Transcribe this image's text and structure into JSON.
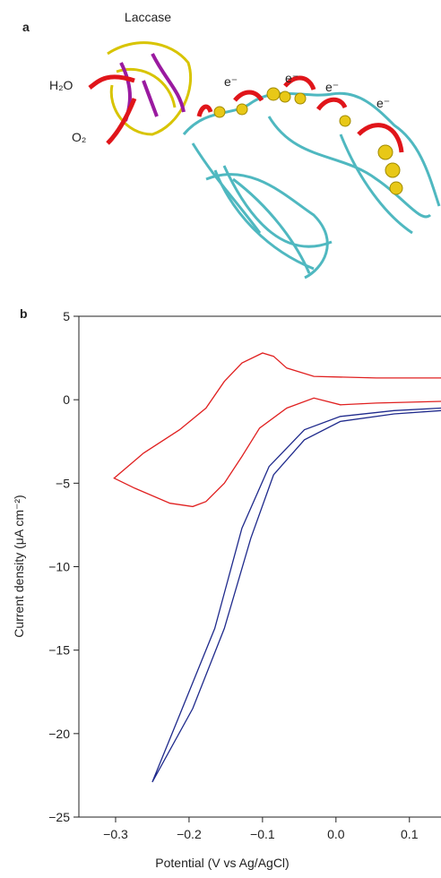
{
  "panel_labels": [
    "a",
    "b"
  ],
  "illustration": {
    "protein": "Laccase",
    "product": "H₂O",
    "reactant": "O₂",
    "electrons": [
      "e⁻",
      "e⁻",
      "e⁻",
      "e⁻"
    ]
  },
  "chart_data": {
    "type": "line",
    "x_label": "Potential (V vs Ag/AgCl)",
    "y_label": "Current density (μA cm⁻²)",
    "xlim": [
      -0.35,
      0.143
    ],
    "ylim": [
      -25,
      5
    ],
    "xticks": [
      {
        "value": -0.3,
        "label": "−0.3"
      },
      {
        "value": -0.2,
        "label": "−0.2"
      },
      {
        "value": -0.1,
        "label": "−0.1"
      },
      {
        "value": 0,
        "label": "0.0"
      },
      {
        "value": 0.1,
        "label": "0.1"
      }
    ],
    "yticks": [
      5,
      0,
      {
        "value": -5,
        "label": "−5"
      },
      {
        "value": -10,
        "label": "−10"
      },
      {
        "value": -15,
        "label": "−15"
      },
      {
        "value": -20,
        "label": "−20"
      },
      {
        "value": -25,
        "label": "−25"
      }
    ],
    "series": [
      {
        "color": "#e02020",
        "x": [
          0.143,
          0.055,
          -0.03,
          -0.067,
          -0.085,
          -0.1,
          -0.128,
          -0.152,
          -0.177,
          -0.213,
          -0.262,
          -0.302,
          -0.274,
          -0.226,
          -0.195,
          -0.177,
          -0.152,
          -0.128,
          -0.104,
          -0.067,
          -0.03,
          0.006,
          0.055,
          0.143
        ],
        "values": [
          1.3,
          1.3,
          1.4,
          1.9,
          2.6,
          2.8,
          2.2,
          1.1,
          -0.5,
          -1.8,
          -3.2,
          -4.7,
          -5.3,
          -6.2,
          -6.4,
          -6.1,
          -5.0,
          -3.4,
          -1.7,
          -0.5,
          0.1,
          -0.3,
          -0.2,
          -0.1
        ]
      },
      {
        "color": "#1f2a8c",
        "x": [
          0.143,
          0.079,
          0.006,
          -0.043,
          -0.091,
          -0.128,
          -0.165,
          -0.213,
          -0.25,
          -0.195,
          -0.152,
          -0.116,
          -0.085,
          -0.043,
          0.006,
          0.079,
          0.143
        ],
        "values": [
          -0.5,
          -0.65,
          -1.0,
          -1.8,
          -4.0,
          -7.7,
          -13.7,
          -18.9,
          -22.9,
          -18.5,
          -13.7,
          -8.3,
          -4.5,
          -2.4,
          -1.3,
          -0.85,
          -0.65
        ]
      }
    ]
  }
}
